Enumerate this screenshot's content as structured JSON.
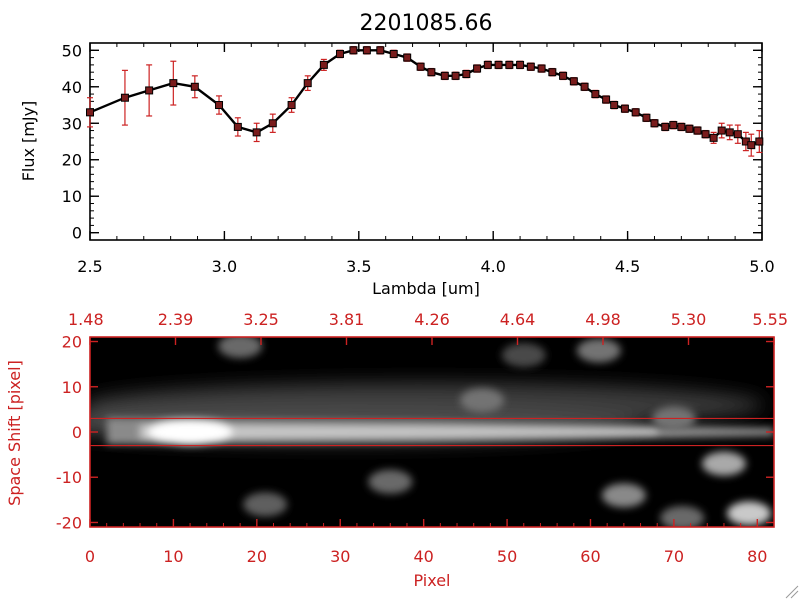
{
  "chart_data": [
    {
      "type": "line",
      "title": "2201085.66",
      "xlabel": "Lambda [um]",
      "ylabel": "Flux [mJy]",
      "xlim": [
        2.5,
        5.0
      ],
      "ylim": [
        -2,
        52
      ],
      "xticks": [
        2.5,
        3.0,
        3.5,
        4.0,
        4.5,
        5.0
      ],
      "xtick_labels": [
        "2.5",
        "3.0",
        "3.5",
        "4.0",
        "4.5",
        "5.0"
      ],
      "yticks": [
        0,
        10,
        20,
        30,
        40,
        50
      ],
      "ytick_labels": [
        "0",
        "10",
        "20",
        "30",
        "40",
        "50"
      ],
      "colors": {
        "line": "#000000",
        "marker": "#7a1c1c",
        "errorbar": "#cc2222"
      },
      "series": [
        {
          "name": "flux",
          "x": [
            2.5,
            2.63,
            2.72,
            2.81,
            2.89,
            2.98,
            3.05,
            3.12,
            3.18,
            3.25,
            3.31,
            3.37,
            3.43,
            3.48,
            3.53,
            3.58,
            3.63,
            3.68,
            3.73,
            3.77,
            3.82,
            3.86,
            3.9,
            3.94,
            3.98,
            4.02,
            4.06,
            4.1,
            4.14,
            4.18,
            4.22,
            4.26,
            4.3,
            4.34,
            4.38,
            4.42,
            4.45,
            4.49,
            4.53,
            4.57,
            4.6,
            4.64,
            4.67,
            4.7,
            4.73,
            4.76,
            4.79,
            4.82,
            4.85,
            4.88,
            4.91,
            4.94,
            4.96,
            4.99
          ],
          "y": [
            33,
            37,
            39,
            41,
            40,
            35,
            29,
            27.5,
            30,
            35,
            41,
            46,
            49,
            50,
            50,
            50,
            49,
            48,
            45.5,
            44,
            43,
            43,
            43.5,
            45,
            46,
            46,
            46,
            46,
            45.5,
            45,
            44,
            43,
            41.5,
            40,
            38,
            36.5,
            35,
            34,
            33,
            31.5,
            30,
            29,
            29.5,
            29,
            28.5,
            28,
            27,
            26,
            28,
            27.5,
            27,
            25,
            24,
            25
          ],
          "yerr": [
            4,
            7.5,
            7,
            6,
            3,
            2.5,
            2.5,
            2.5,
            2.5,
            2,
            2,
            1.5,
            1,
            1,
            1,
            1,
            1,
            1,
            1,
            1,
            1,
            1,
            1,
            1,
            1,
            1,
            1,
            1,
            1,
            1,
            1,
            1,
            1,
            1,
            1,
            1,
            1,
            1,
            1,
            1,
            1,
            1,
            1,
            1,
            1,
            1,
            1,
            1.5,
            2,
            2,
            2.5,
            2.5,
            3,
            3
          ]
        }
      ]
    },
    {
      "type": "heatmap",
      "title": "",
      "xlabel": "Pixel",
      "ylabel": "Space Shift [pixel]",
      "xlim": [
        0,
        82
      ],
      "ylim": [
        -21,
        21
      ],
      "xticks": [
        0,
        10,
        20,
        30,
        40,
        50,
        60,
        70,
        80
      ],
      "xtick_labels": [
        "0",
        "10",
        "20",
        "30",
        "40",
        "50",
        "60",
        "70",
        "80"
      ],
      "yticks": [
        -20,
        -10,
        0,
        10,
        20
      ],
      "ytick_labels": [
        "-20",
        "-10",
        "0",
        "10",
        "20"
      ],
      "top_axis_labels": [
        "1.48",
        "2.39",
        "3.25",
        "3.81",
        "4.26",
        "4.64",
        "4.98",
        "5.30",
        "5.55"
      ],
      "aperture": [
        -3,
        3
      ],
      "colors": {
        "axis": "#cc2222",
        "aperture": "#cc2222"
      },
      "trace": {
        "center": 0,
        "peak_pixel": 12
      },
      "blobs": [
        {
          "x": 18,
          "y": 19,
          "intensity": 0.3
        },
        {
          "x": 47,
          "y": 7,
          "intensity": 0.35
        },
        {
          "x": 61,
          "y": 18,
          "intensity": 0.35
        },
        {
          "x": 70,
          "y": 3,
          "intensity": 0.35
        },
        {
          "x": 76,
          "y": -7,
          "intensity": 0.6
        },
        {
          "x": 79,
          "y": -18,
          "intensity": 0.75
        },
        {
          "x": 64,
          "y": -14,
          "intensity": 0.45
        },
        {
          "x": 36,
          "y": -11,
          "intensity": 0.3
        },
        {
          "x": 21,
          "y": -16,
          "intensity": 0.25
        },
        {
          "x": 71,
          "y": -19,
          "intensity": 0.3
        },
        {
          "x": 52,
          "y": 17,
          "intensity": 0.15
        }
      ]
    }
  ]
}
